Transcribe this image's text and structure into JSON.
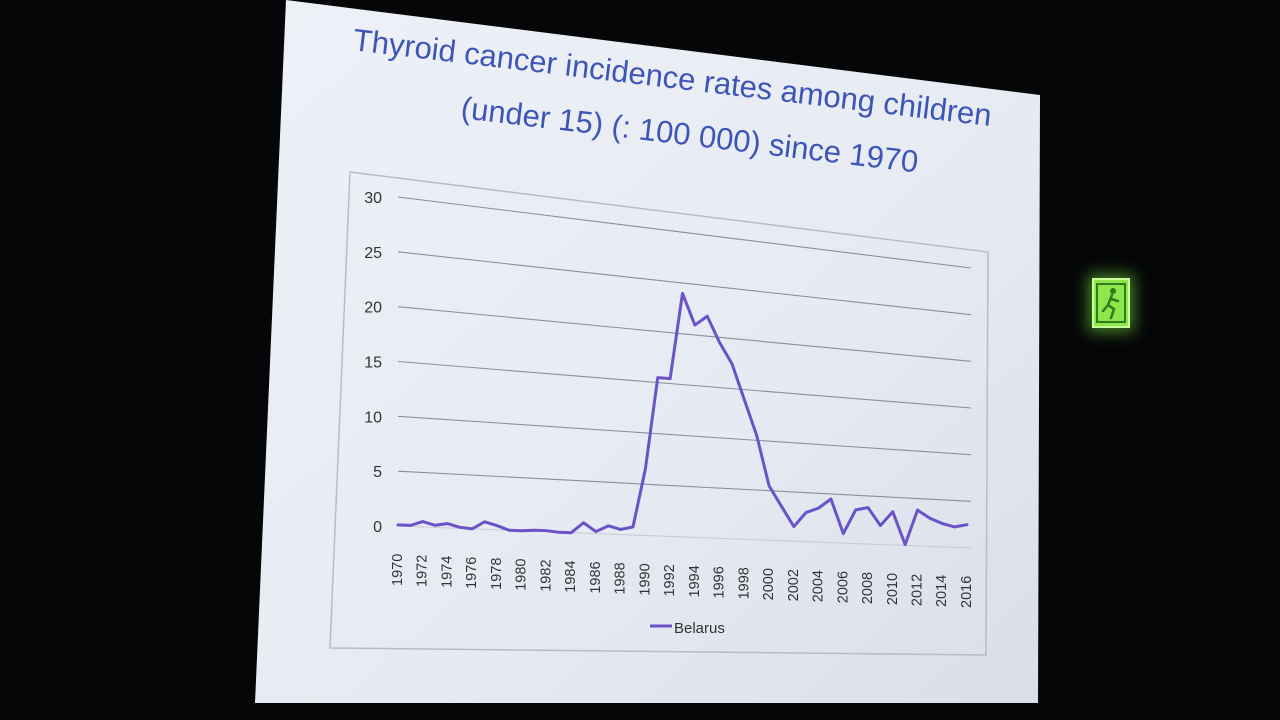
{
  "slide": {
    "title_line1": "Thyroid cancer incidence rates among children",
    "title_line2": "(under 15) (: 100 000) since 1970"
  },
  "chart_data": {
    "type": "line",
    "title": "",
    "xlabel": "",
    "ylabel": "",
    "ylim": [
      0,
      30
    ],
    "yticks": [
      "0",
      "5",
      "10",
      "15",
      "20",
      "25",
      "30"
    ],
    "xlabels": [
      "1970",
      "1972",
      "1974",
      "1976",
      "1978",
      "1980",
      "1982",
      "1984",
      "1986",
      "1988",
      "1990",
      "1992",
      "1994",
      "1996",
      "1998",
      "2000",
      "2002",
      "2004",
      "2006",
      "2008",
      "2010",
      "2012",
      "2014",
      "2016"
    ],
    "grid": true,
    "legend_position": "bottom",
    "series": [
      {
        "name": "Belarus",
        "color": "#6b52c8",
        "x": [
          1970,
          1971,
          1972,
          1973,
          1974,
          1975,
          1976,
          1977,
          1978,
          1979,
          1980,
          1981,
          1982,
          1983,
          1984,
          1985,
          1986,
          1987,
          1988,
          1989,
          1990,
          1991,
          1992,
          1993,
          1994,
          1995,
          1996,
          1997,
          1998,
          1999,
          2000,
          2001,
          2002,
          2003,
          2004,
          2005,
          2006,
          2007,
          2008,
          2009,
          2010,
          2011,
          2012,
          2013,
          2014,
          2015,
          2016
        ],
        "values": [
          0.1,
          0.1,
          0.5,
          0.2,
          0.4,
          0.1,
          0.0,
          0.7,
          0.4,
          0.0,
          0.0,
          0.1,
          0.1,
          0.0,
          0.0,
          1.0,
          0.2,
          0.8,
          0.5,
          0.8,
          6.5,
          15.5,
          15.5,
          24.0,
          21.0,
          22.0,
          19.5,
          17.5,
          14.0,
          10.5,
          5.5,
          3.5,
          1.5,
          3.0,
          3.5,
          4.5,
          1.0,
          3.5,
          3.8,
          2.0,
          3.5,
          0.1,
          3.8,
          3.0,
          2.5,
          2.2,
          2.5
        ]
      }
    ]
  },
  "exit_sign": {
    "icon": "running-man-icon",
    "color": "#8ee64a"
  }
}
